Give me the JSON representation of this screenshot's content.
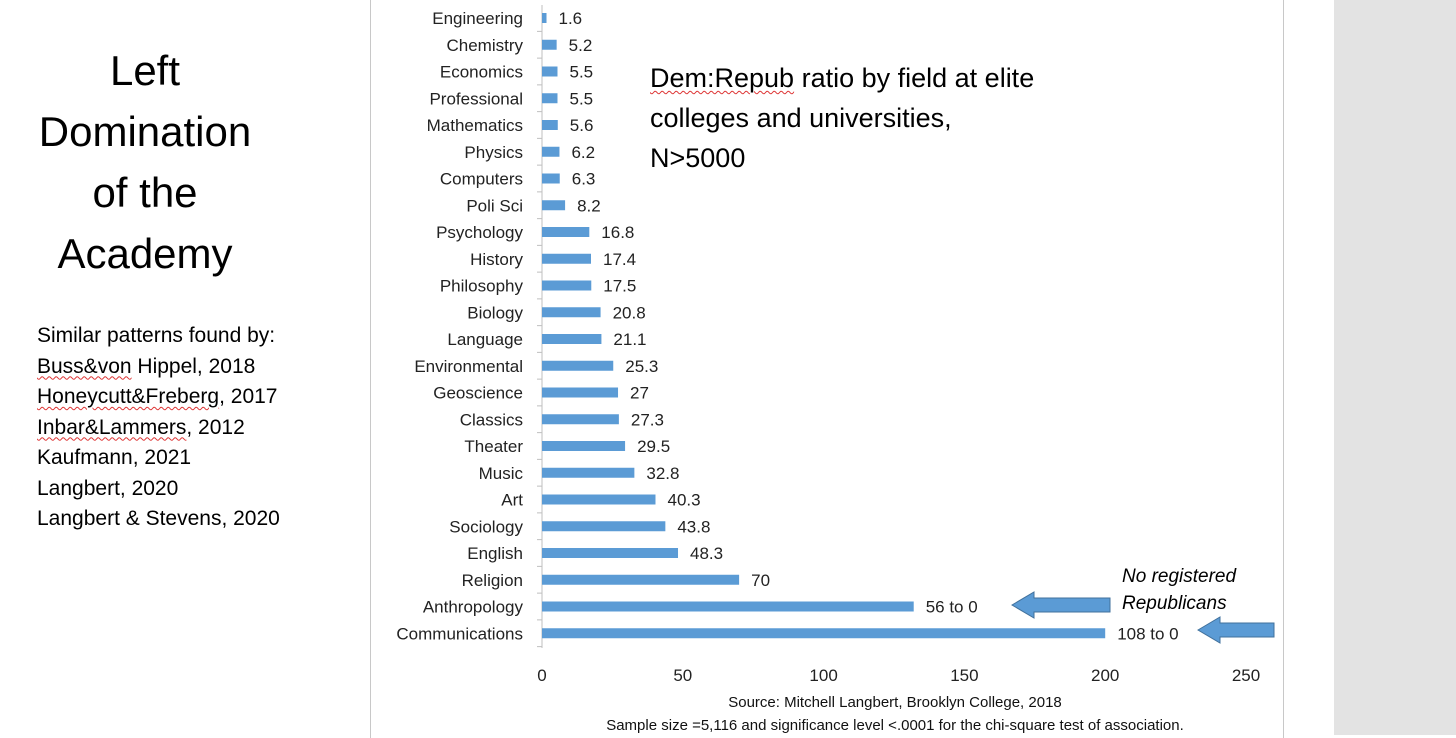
{
  "left_panel": {
    "title_lines": [
      "Left",
      "Domination",
      "of the",
      "Academy"
    ],
    "refs_heading": "Similar patterns found by:",
    "references": [
      {
        "a": "Buss&von",
        "b": " Hippel, 2018"
      },
      {
        "a": "Honeycutt&Freberg",
        "b": ", 2017"
      },
      {
        "a": "Inbar&Lammers",
        "b": ", 2012"
      },
      {
        "a": "",
        "b": "Kaufmann, 2021"
      },
      {
        "a": "",
        "b": "Langbert, 2020"
      },
      {
        "a": "",
        "b": "Langbert & Stevens, 2020"
      }
    ]
  },
  "chart_title": {
    "line1_a": "Dem:Repub",
    "line1_b": " ratio by field at elite",
    "line2": "colleges and universities,",
    "line3": "N>5000"
  },
  "annotation": {
    "line1": "No registered",
    "line2": "Republicans"
  },
  "source": {
    "line1": "Source: Mitchell Langbert, Brooklyn College, 2018",
    "line2": "Sample size =5,116 and significance level <.0001 for the chi-square test of association."
  },
  "chart_data": {
    "type": "bar",
    "orientation": "horizontal",
    "bar_color": "#5b9bd5",
    "arrow_color": "#5b9bd5",
    "categories": [
      "Engineering",
      "Chemistry",
      "Economics",
      "Professional",
      "Mathematics",
      "Physics",
      "Computers",
      "Poli Sci",
      "Psychology",
      "History",
      "Philosophy",
      "Biology",
      "Language",
      "Environmental",
      "Geoscience",
      "Classics",
      "Theater",
      "Music",
      "Art",
      "Sociology",
      "English",
      "Religion",
      "Anthropology",
      "Communications"
    ],
    "values": [
      1.6,
      5.2,
      5.5,
      5.5,
      5.6,
      6.2,
      6.3,
      8.2,
      16.8,
      17.4,
      17.5,
      20.8,
      21.1,
      25.3,
      27,
      27.3,
      29.5,
      32.8,
      40.3,
      43.8,
      48.3,
      70,
      132,
      200
    ],
    "data_labels": [
      "1.6",
      "5.2",
      "5.5",
      "5.5",
      "5.6",
      "6.2",
      "6.3",
      "8.2",
      "16.8",
      "17.4",
      "17.5",
      "20.8",
      "21.1",
      "25.3",
      "27",
      "27.3",
      "29.5",
      "32.8",
      "40.3",
      "43.8",
      "48.3",
      "70",
      "56 to 0",
      "108 to 0"
    ],
    "xlim": [
      0,
      250
    ],
    "xticks": [
      0,
      50,
      100,
      150,
      200,
      250
    ],
    "xlabel": "",
    "ylabel": "",
    "grid": false,
    "legend": "none"
  }
}
